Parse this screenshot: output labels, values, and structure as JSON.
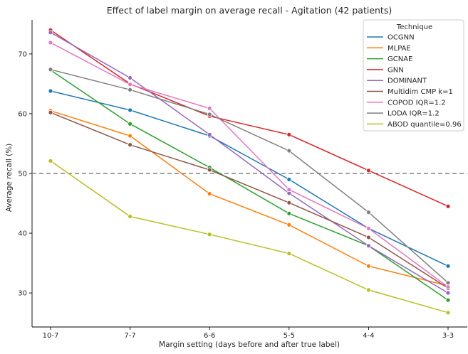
{
  "chart_data": {
    "type": "line",
    "title": "Effect of label margin on average recall - Agitation (42 patients)",
    "xlabel": "Margin setting (days before and after true label)",
    "ylabel": "Average recall (%)",
    "categories": [
      "10-7",
      "7-7",
      "6-6",
      "5-5",
      "4-4",
      "3-3"
    ],
    "ylim": [
      24.3,
      75.7
    ],
    "yticks": [
      30,
      40,
      50,
      60,
      70
    ],
    "reference_line": {
      "y": 50,
      "style": "dashed",
      "color": "#808080"
    },
    "grid": false,
    "legend": {
      "title": "Technique",
      "placement": "top-right"
    },
    "series": [
      {
        "name": "OCGNN",
        "color": "#1f77b4",
        "values": [
          63.8,
          60.6,
          56.3,
          49.0,
          40.8,
          34.5
        ]
      },
      {
        "name": "MLPAE",
        "color": "#ff7f0e",
        "values": [
          60.5,
          56.3,
          46.6,
          41.4,
          34.5,
          31.2
        ]
      },
      {
        "name": "GCNAE",
        "color": "#2ca02c",
        "values": [
          67.3,
          58.3,
          51.0,
          43.3,
          37.9,
          28.8
        ]
      },
      {
        "name": "GNN",
        "color": "#d62728",
        "values": [
          74.0,
          65.0,
          59.6,
          56.5,
          50.5,
          44.5
        ]
      },
      {
        "name": "DOMINANT",
        "color": "#9467bd",
        "values": [
          73.6,
          66.0,
          56.5,
          46.7,
          37.9,
          30.0
        ]
      },
      {
        "name": "Multidim CMP k=1",
        "color": "#8c564b",
        "values": [
          60.2,
          54.8,
          50.6,
          45.1,
          39.3,
          30.8
        ]
      },
      {
        "name": "COPOD IQR=1.2",
        "color": "#e377c2",
        "values": [
          71.9,
          64.9,
          60.9,
          47.3,
          40.8,
          31.0
        ]
      },
      {
        "name": "LODA IQR=1.2",
        "color": "#7f7f7f",
        "values": [
          67.4,
          64.0,
          59.9,
          53.8,
          43.5,
          31.7
        ]
      },
      {
        "name": "ABOD quantile=0.96",
        "color": "#bcbd22",
        "values": [
          52.1,
          42.8,
          39.8,
          36.6,
          30.5,
          26.7
        ]
      }
    ]
  }
}
